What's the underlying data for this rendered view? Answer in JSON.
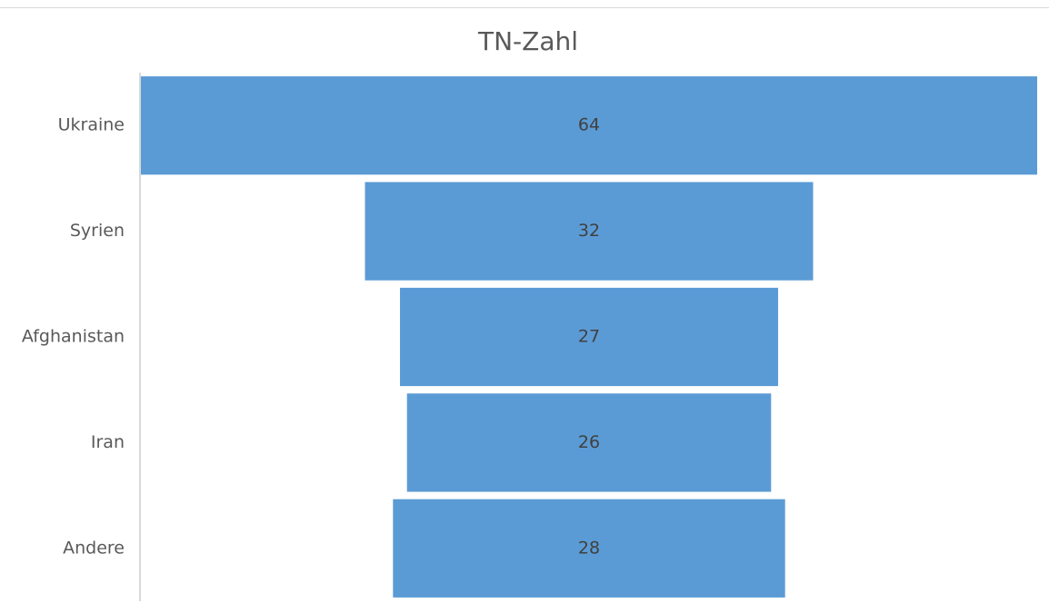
{
  "chart_data": {
    "type": "funnel",
    "title": "TN-Zahl",
    "categories": [
      "Ukraine",
      "Syrien",
      "Afghanistan",
      "Iran",
      "Andere"
    ],
    "values": [
      64,
      32,
      27,
      26,
      28
    ],
    "color": "#5b9bd5"
  }
}
